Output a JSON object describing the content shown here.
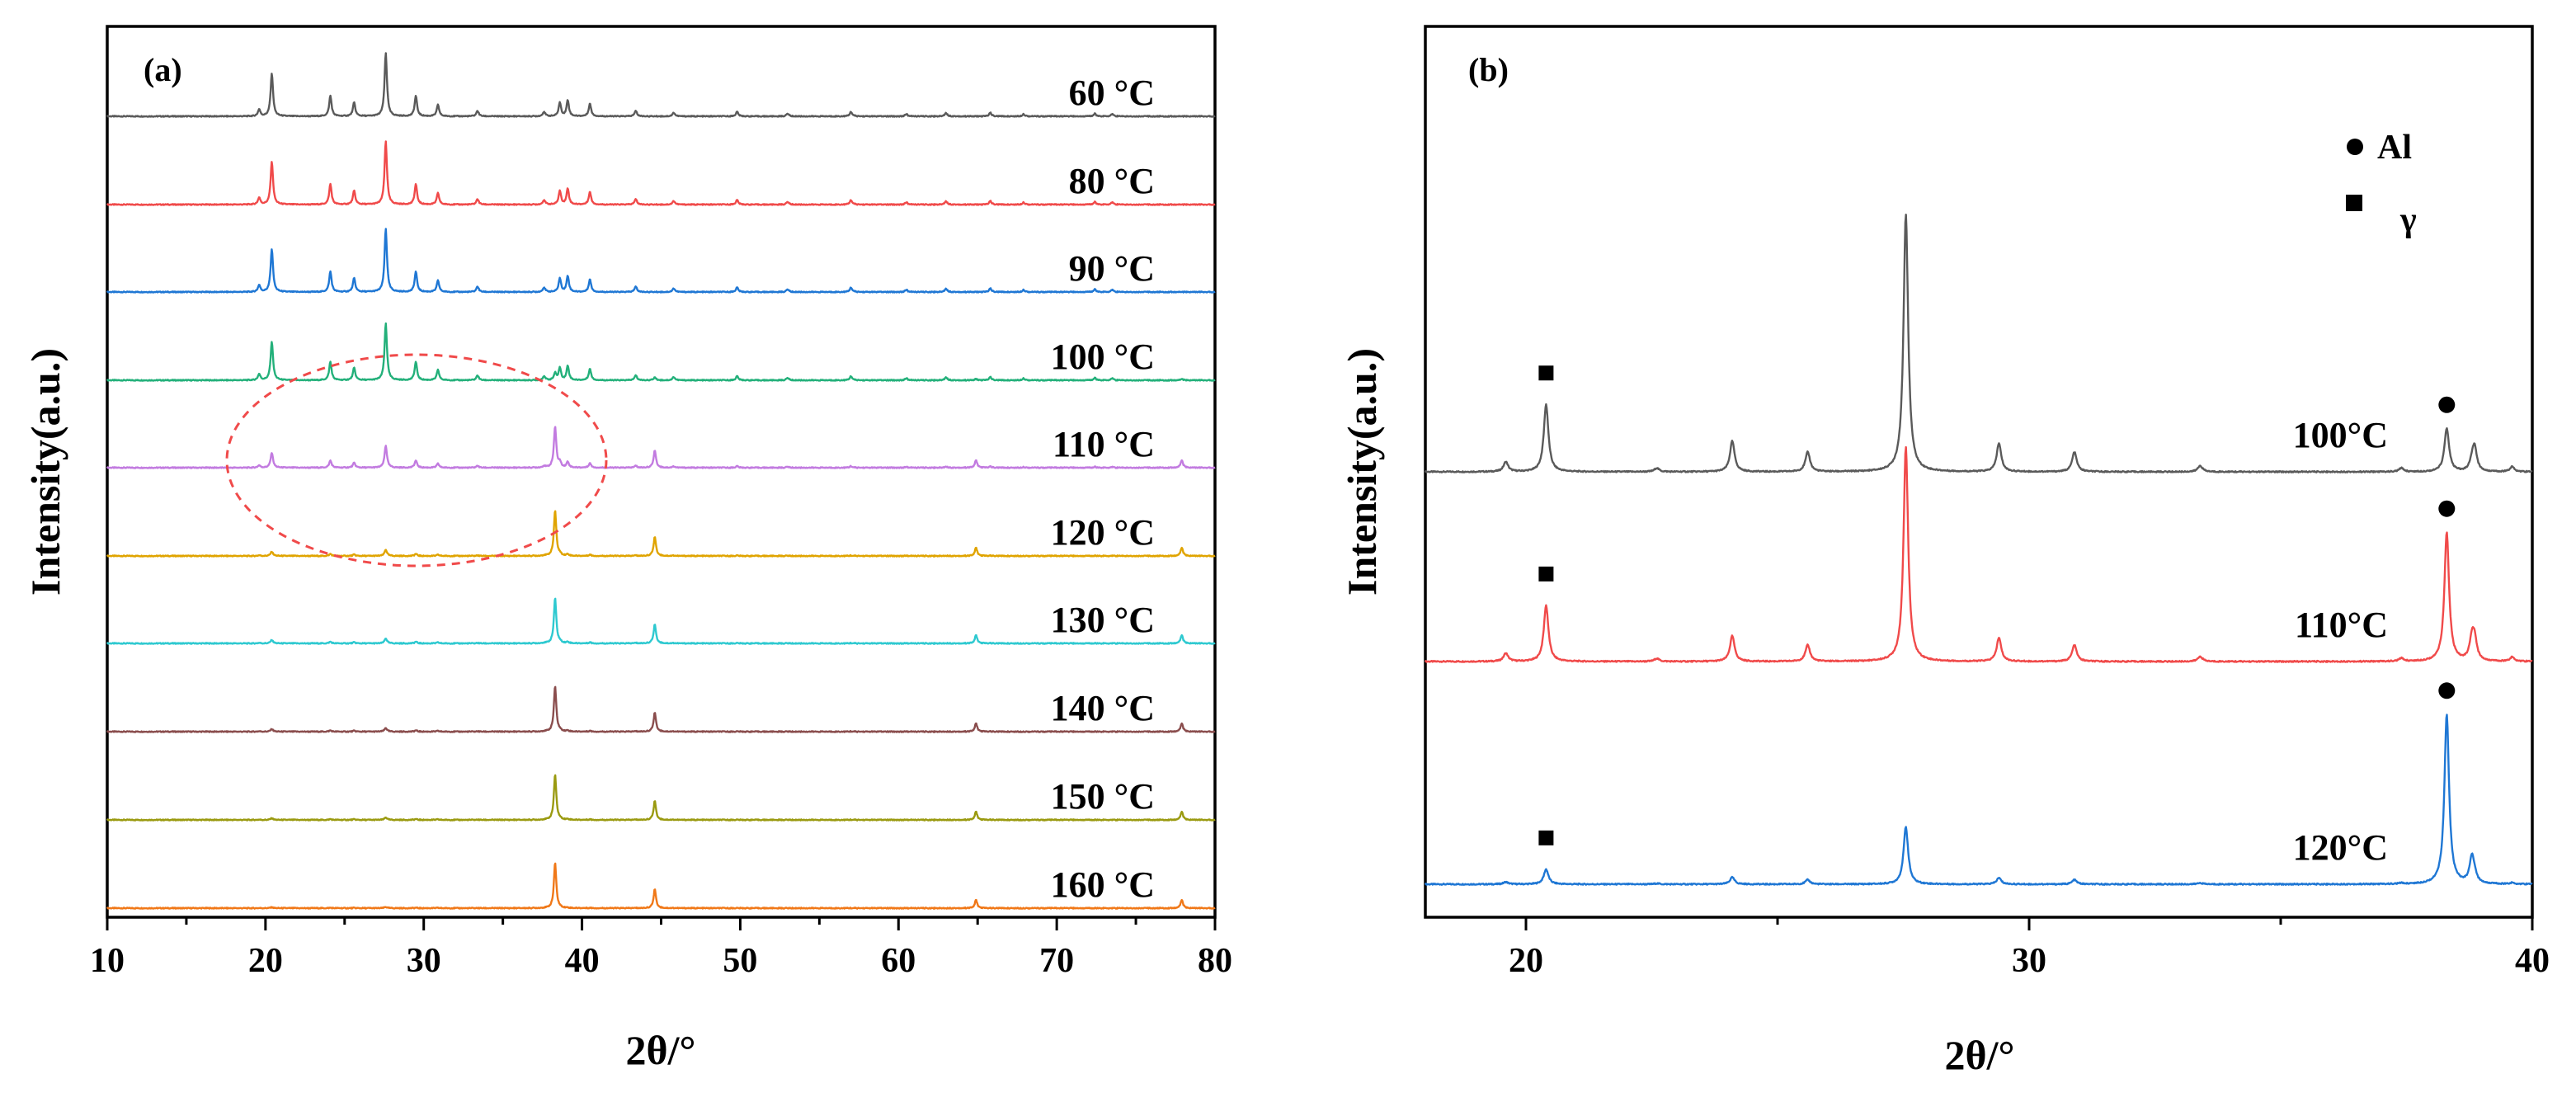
{
  "chart_data": [
    {
      "panel": "(a)",
      "type": "line",
      "xlabel": "2θ/°",
      "ylabel": "Intensity(a.u.)",
      "xlim": [
        10,
        80
      ],
      "xticks": [
        "10",
        "20",
        "30",
        "40",
        "50",
        "60",
        "70",
        "80"
      ],
      "yticks": [],
      "peaks_al": [
        [
          38.3,
          1.0
        ],
        [
          44.6,
          0.42
        ],
        [
          64.9,
          0.18
        ],
        [
          77.9,
          0.18
        ]
      ],
      "peaks_gamma": [
        [
          19.6,
          0.15
        ],
        [
          20.4,
          0.95
        ],
        [
          24.1,
          0.45
        ],
        [
          25.6,
          0.3
        ],
        [
          27.6,
          1.4
        ],
        [
          29.5,
          0.45
        ],
        [
          30.9,
          0.25
        ],
        [
          33.4,
          0.12
        ],
        [
          37.6,
          0.1
        ],
        [
          38.6,
          0.3
        ],
        [
          39.1,
          0.35
        ],
        [
          40.5,
          0.28
        ],
        [
          43.4,
          0.12
        ],
        [
          45.8,
          0.08
        ],
        [
          49.8,
          0.1
        ],
        [
          53.0,
          0.06
        ],
        [
          57.0,
          0.1
        ],
        [
          60.5,
          0.05
        ],
        [
          63.0,
          0.08
        ],
        [
          65.8,
          0.08
        ],
        [
          67.9,
          0.05
        ],
        [
          72.4,
          0.06
        ],
        [
          73.5,
          0.05
        ]
      ],
      "annotation": "dashed ellipse around 110 °C trace near 20–40°",
      "series": [
        {
          "name": "60 °C",
          "label": "60 °C",
          "color": "#5a5a5a",
          "al_fraction": 0.0,
          "gamma_fraction": 1.0
        },
        {
          "name": "80 °C",
          "label": "80 °C",
          "color": "#f04a4a",
          "al_fraction": 0.0,
          "gamma_fraction": 1.0
        },
        {
          "name": "90 °C",
          "label": "90 °C",
          "color": "#1f77d4",
          "al_fraction": 0.0,
          "gamma_fraction": 1.0
        },
        {
          "name": "100 °C",
          "label": "100 °C",
          "color": "#23b07a",
          "al_fraction": 0.15,
          "gamma_fraction": 0.9
        },
        {
          "name": "110 °C",
          "label": "110 °C",
          "color": "#c27be0",
          "al_fraction": 0.9,
          "gamma_fraction": 0.35
        },
        {
          "name": "120 °C",
          "label": "120 °C",
          "color": "#e0a400",
          "al_fraction": 1.0,
          "gamma_fraction": 0.1
        },
        {
          "name": "130 °C",
          "label": "130 °C",
          "color": "#2ec9d0",
          "al_fraction": 1.0,
          "gamma_fraction": 0.08
        },
        {
          "name": "140 °C",
          "label": "140 °C",
          "color": "#8a4d4d",
          "al_fraction": 1.0,
          "gamma_fraction": 0.06
        },
        {
          "name": "150 °C",
          "label": "150 °C",
          "color": "#9a9a10",
          "al_fraction": 1.0,
          "gamma_fraction": 0.04
        },
        {
          "name": "160 °C",
          "label": "160 °C",
          "color": "#f07818",
          "al_fraction": 1.0,
          "gamma_fraction": 0.02
        }
      ]
    },
    {
      "panel": "(b)",
      "type": "line",
      "xlabel": "2θ/°",
      "ylabel": "Intensity(a.u.)",
      "xlim": [
        18,
        40
      ],
      "xticks": [
        "20",
        "30",
        "40"
      ],
      "yticks": [],
      "legend": [
        {
          "marker": "circle",
          "label": "Al"
        },
        {
          "marker": "square",
          "label": "γ"
        }
      ],
      "peaks_al": [
        [
          38.3,
          1.0
        ],
        [
          38.8,
          0.15
        ]
      ],
      "peaks_gamma": [
        [
          19.6,
          0.08
        ],
        [
          20.4,
          0.55
        ],
        [
          22.6,
          0.03
        ],
        [
          24.1,
          0.25
        ],
        [
          25.6,
          0.16
        ],
        [
          27.55,
          2.1
        ],
        [
          29.4,
          0.23
        ],
        [
          30.9,
          0.16
        ],
        [
          33.4,
          0.05
        ],
        [
          37.4,
          0.03
        ],
        [
          38.85,
          0.2
        ],
        [
          39.6,
          0.04
        ]
      ],
      "series": [
        {
          "name": "100°C",
          "label": "100°C",
          "color": "#5a5a5a",
          "al_fraction": 0.32,
          "gamma_fraction": 0.9
        },
        {
          "name": "110°C",
          "label": "110°C",
          "color": "#f04a4a",
          "al_fraction": 0.95,
          "gamma_fraction": 0.75
        },
        {
          "name": "120°C",
          "label": "120°C",
          "color": "#1f77d4",
          "al_fraction": 1.25,
          "gamma_fraction": 0.2
        }
      ],
      "markers": [
        {
          "series": "100°C",
          "square_at": 20.4,
          "circle_at": 38.3
        },
        {
          "series": "110°C",
          "square_at": 20.4,
          "circle_at": 38.3
        },
        {
          "series": "120°C",
          "square_at": 20.4,
          "circle_at": 38.3
        }
      ]
    }
  ]
}
